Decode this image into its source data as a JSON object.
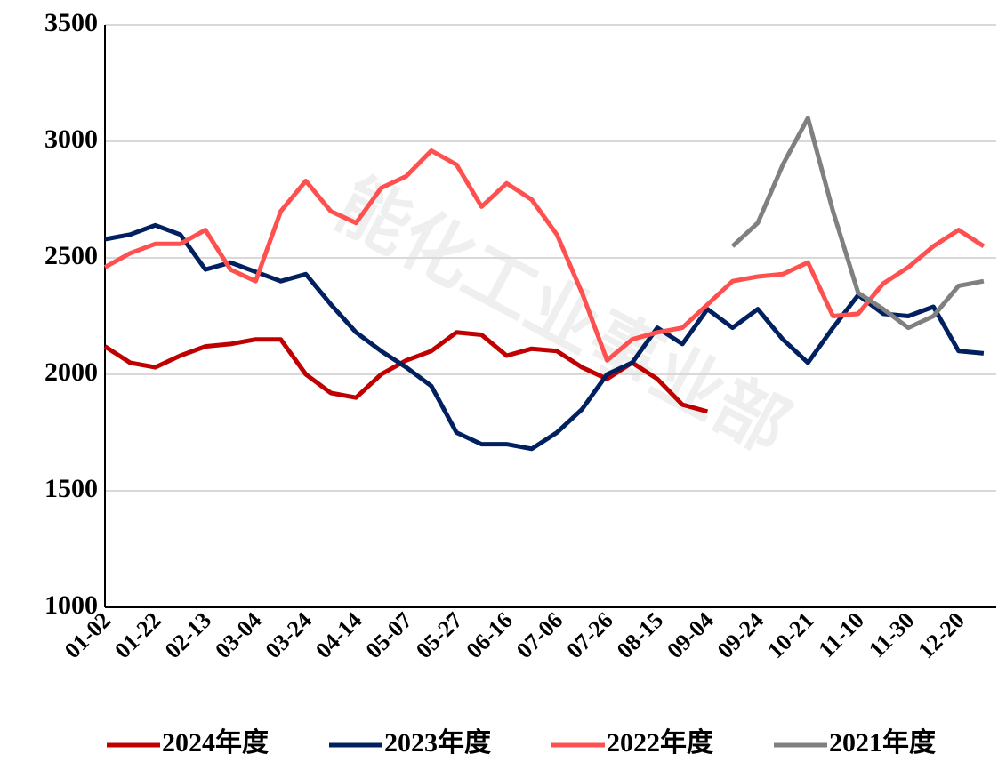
{
  "watermark": "能化工业事业部",
  "chart_data": {
    "type": "line",
    "categories": [
      "01-02",
      null,
      "01-22",
      null,
      "02-13",
      null,
      "03-04",
      null,
      "03-24",
      null,
      "04-14",
      null,
      "05-07",
      null,
      "05-27",
      null,
      "06-16",
      null,
      "07-06",
      null,
      "07-26",
      null,
      "08-15",
      null,
      "09-04",
      null,
      "09-24",
      null,
      "10-21",
      null,
      "11-10",
      null,
      "11-30",
      null,
      "12-20",
      null
    ],
    "ylim": [
      1000,
      3500
    ],
    "yticks": [
      1000,
      1500,
      2000,
      2500,
      3000,
      3500
    ],
    "grid": true,
    "legend": "bottom",
    "series": [
      {
        "name": "2024年度",
        "color": "#c00000",
        "values": [
          2120,
          2050,
          2030,
          2080,
          2120,
          2130,
          2150,
          2150,
          2000,
          1920,
          1900,
          2000,
          2060,
          2100,
          2180,
          2170,
          2080,
          2110,
          2100,
          2030,
          1980,
          2050,
          1980,
          1870,
          1840,
          null,
          null,
          null,
          null,
          null,
          null,
          null,
          null,
          null,
          null,
          null
        ]
      },
      {
        "name": "2023年度",
        "color": "#002060",
        "values": [
          2580,
          2600,
          2640,
          2600,
          2450,
          2480,
          2440,
          2400,
          2430,
          2300,
          2180,
          2100,
          2030,
          1950,
          1750,
          1700,
          1700,
          1680,
          1750,
          1850,
          2000,
          2050,
          2200,
          2130,
          2280,
          2200,
          2280,
          2150,
          2050,
          2200,
          2340,
          2260,
          2250,
          2290,
          2100,
          2090
        ]
      },
      {
        "name": "2022年度",
        "color": "#ff5050",
        "values": [
          2460,
          2520,
          2560,
          2560,
          2620,
          2450,
          2400,
          2700,
          2830,
          2700,
          2650,
          2800,
          2850,
          2960,
          2900,
          2720,
          2820,
          2750,
          2600,
          2350,
          2060,
          2150,
          2180,
          2200,
          2300,
          2400,
          2420,
          2430,
          2480,
          2250,
          2260,
          2390,
          2460,
          2550,
          2620,
          2550
        ]
      },
      {
        "name": "2021年度",
        "color": "#808080",
        "values": [
          null,
          null,
          null,
          null,
          null,
          null,
          null,
          null,
          null,
          null,
          null,
          null,
          null,
          null,
          null,
          null,
          null,
          null,
          null,
          null,
          null,
          null,
          null,
          null,
          null,
          2550,
          2650,
          2900,
          3100,
          2700,
          2350,
          2280,
          2200,
          2250,
          2380,
          2400
        ]
      }
    ]
  }
}
